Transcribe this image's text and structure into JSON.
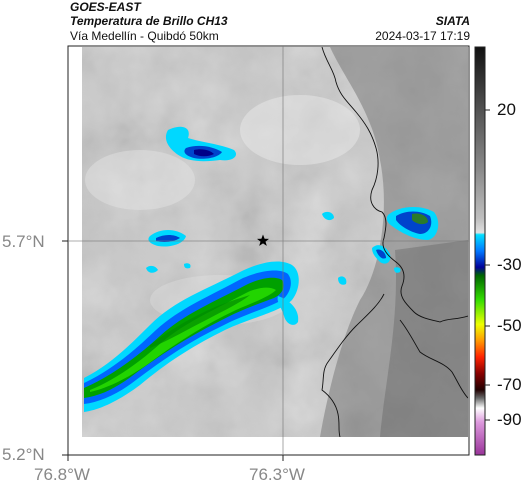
{
  "header": {
    "source": "GOES-EAST",
    "product": "Temperatura de Brillo CH13",
    "organization": "SIATA",
    "region": "Vía Medellín - Quibdó 50km",
    "timestamp": "2024-03-17 17:19"
  },
  "map": {
    "lat_ticks": [
      "5.7°N",
      "5.2°N"
    ],
    "lon_ticks": [
      "76.8°W",
      "76.3°W"
    ],
    "marker_icon": "star-icon"
  },
  "colorbar": {
    "tick_labels": [
      "20",
      "-30",
      "-50",
      "-70",
      "-90"
    ],
    "colors": [
      "#111111",
      "#555555",
      "#8a8a8a",
      "#bfbfbf",
      "#e0e0e0",
      "#00e0ff",
      "#0077ff",
      "#000099",
      "#008800",
      "#33dd00",
      "#eeff00",
      "#ff9900",
      "#ff2200",
      "#880000",
      "#220000",
      "#ffffff",
      "#cc66cc",
      "#993399"
    ]
  }
}
